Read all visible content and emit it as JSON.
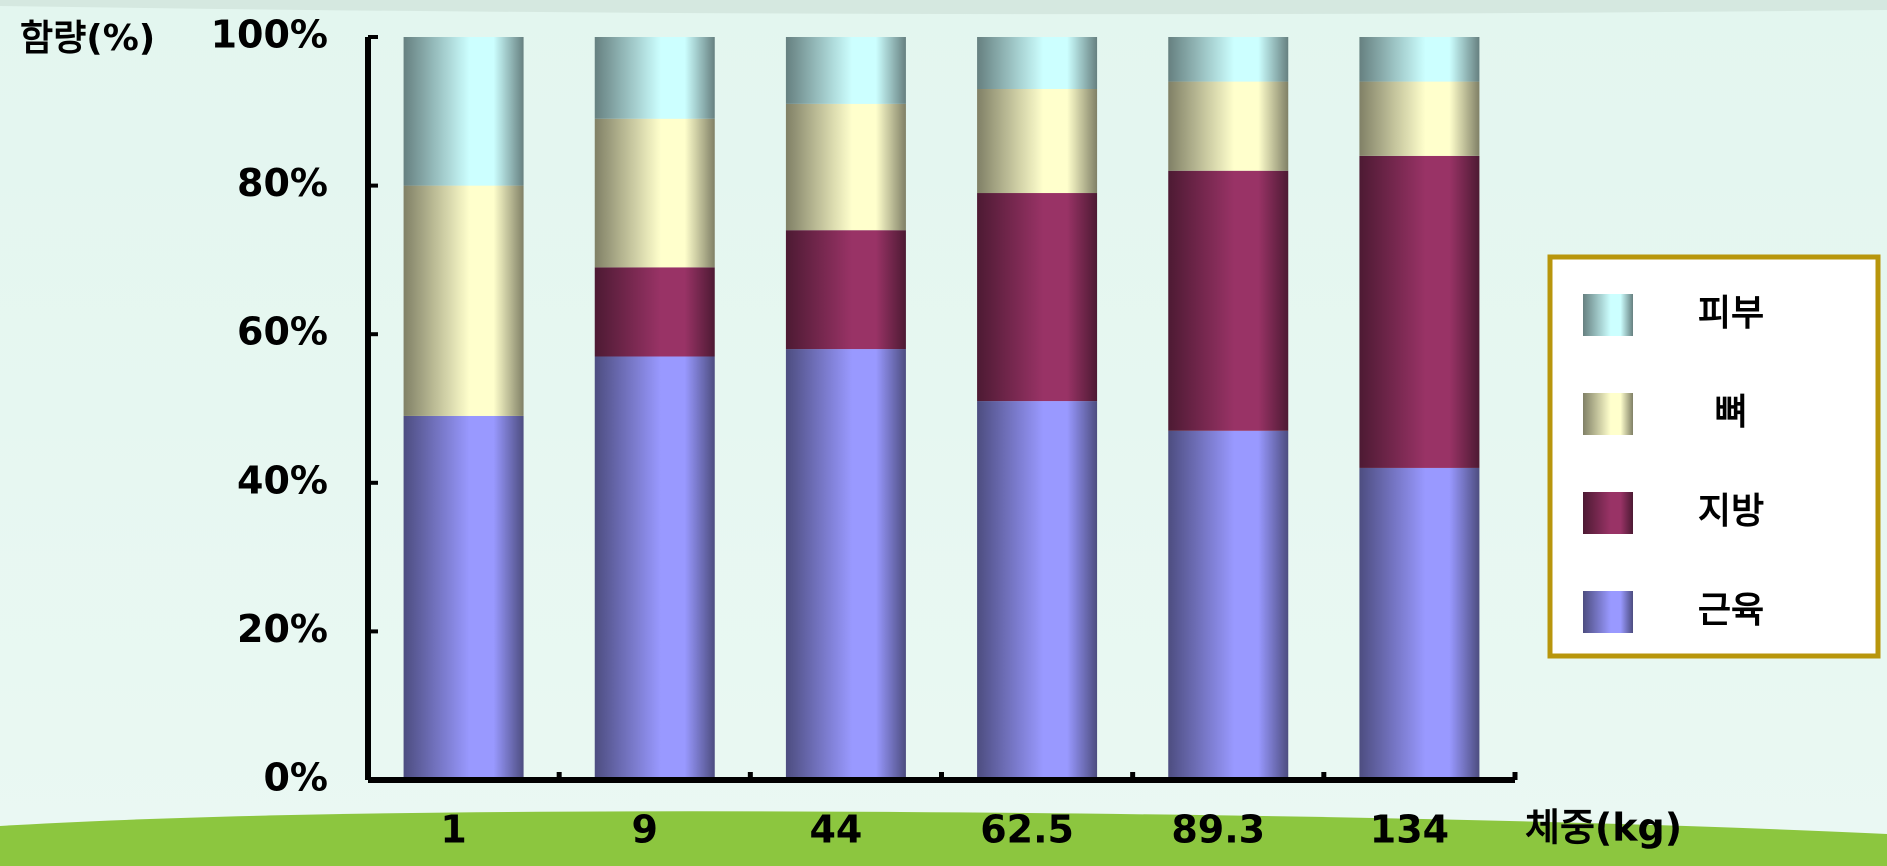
{
  "chart_data": {
    "type": "stacked_bar",
    "y_label": "함량(%)",
    "x_label": "체중(kg)",
    "categories": [
      "1",
      "9",
      "44",
      "62.5",
      "89.3",
      "134"
    ],
    "series": [
      {
        "name": "근육",
        "color": "#9999ff",
        "values": [
          49,
          57,
          58,
          51,
          47,
          42
        ]
      },
      {
        "name": "지방",
        "color": "#993366",
        "values": [
          0,
          12,
          16,
          28,
          35,
          42
        ]
      },
      {
        "name": "뼈",
        "color": "#ffffcc",
        "values": [
          31,
          20,
          17,
          14,
          12,
          10
        ]
      },
      {
        "name": "피부",
        "color": "#ccffff",
        "values": [
          20,
          11,
          9,
          7,
          6,
          6
        ]
      }
    ],
    "ylim": [
      0,
      100
    ],
    "yticks": [
      {
        "value": 0,
        "label": "0%"
      },
      {
        "value": 20,
        "label": "20%"
      },
      {
        "value": 40,
        "label": "40%"
      },
      {
        "value": 60,
        "label": "60%"
      },
      {
        "value": 80,
        "label": "80%"
      },
      {
        "value": 100,
        "label": "100%"
      }
    ],
    "legend": "right"
  }
}
